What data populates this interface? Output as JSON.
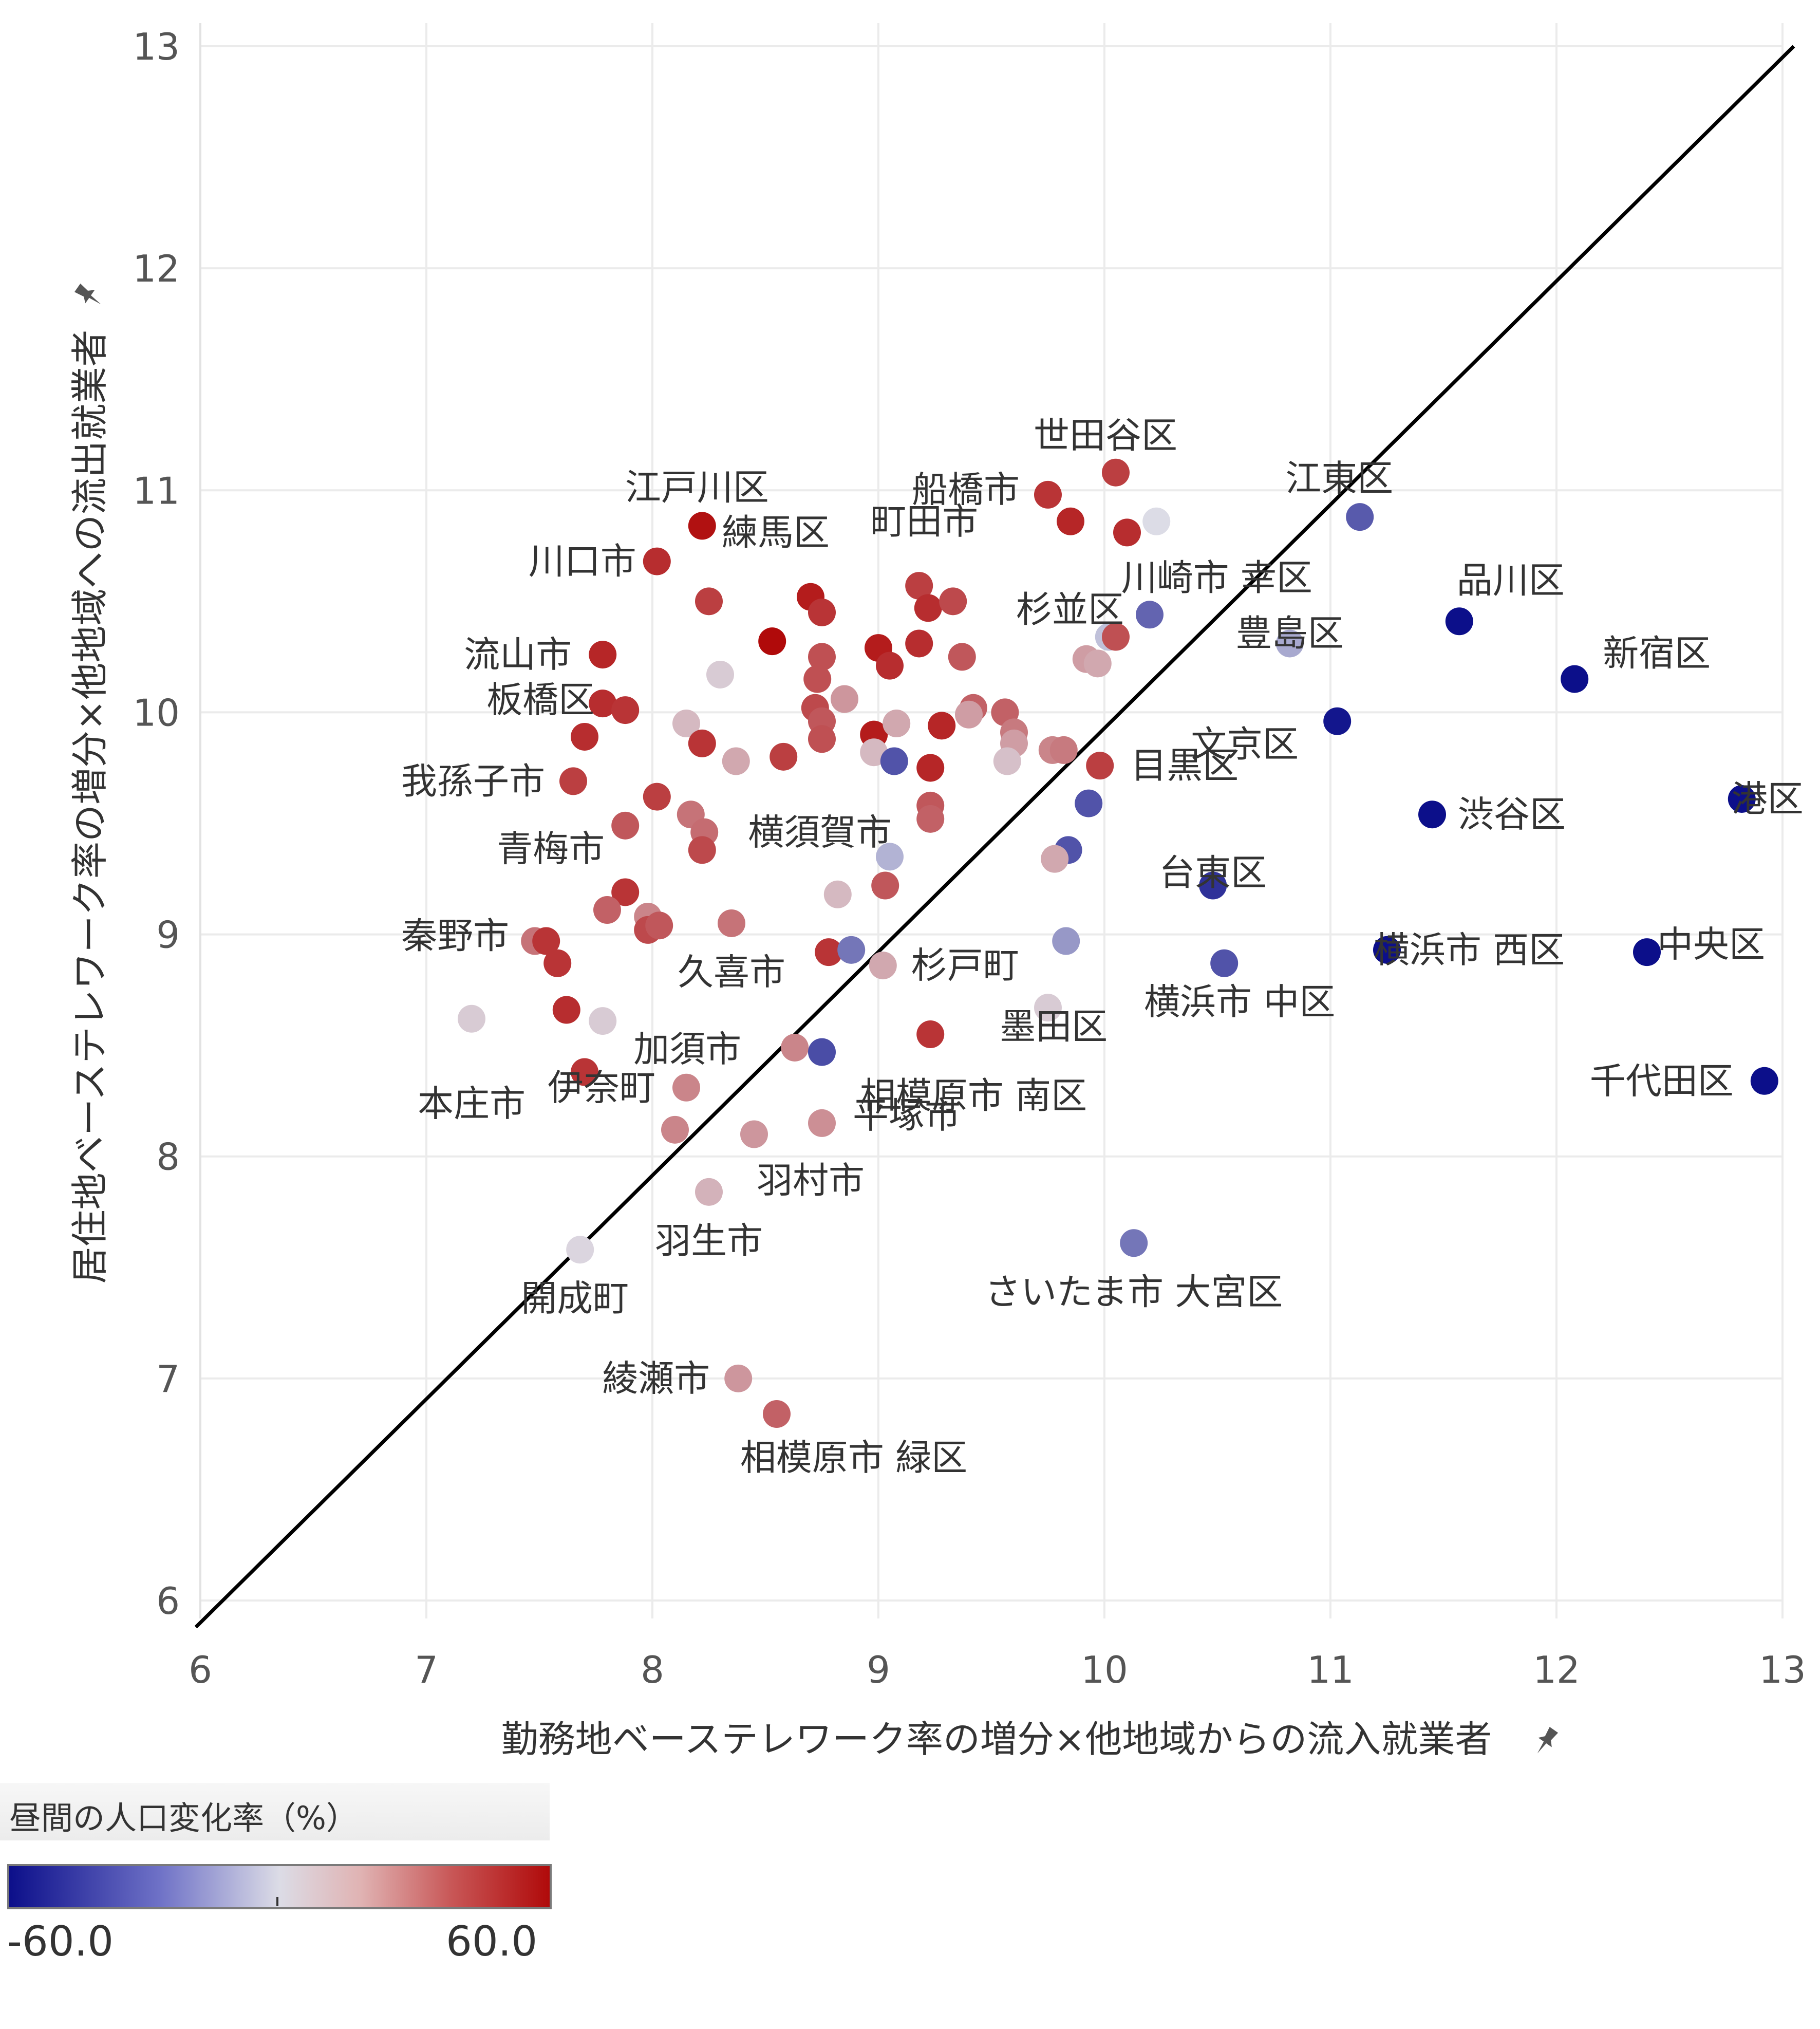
{
  "chart_data": {
    "type": "scatter",
    "title": "",
    "xlabel": "勤務地ベーステレワーク率の増分×他地域からの流入就業者",
    "ylabel": "居住地ベーステレワーク率の増分×他地域への流出就業者",
    "xlim": [
      6,
      13
    ],
    "ylim": [
      6,
      13
    ],
    "xticks": [
      "6",
      "7",
      "8",
      "9",
      "10",
      "11",
      "12",
      "13"
    ],
    "yticks": [
      "6",
      "7",
      "8",
      "9",
      "10",
      "11",
      "12",
      "13"
    ],
    "reference_line": "y = x",
    "color_legend": {
      "title": "昼間の人口変化率（%）",
      "min_label": "-60.0",
      "max_label": "60.0",
      "min": -60,
      "max": 60,
      "low_color": "#0c0f8a",
      "mid_color": "#dcdce6",
      "high_color": "#b00a0a"
    },
    "points": [
      {
        "x": 10.05,
        "y": 11.08,
        "c": 45,
        "label": "世田谷区"
      },
      {
        "x": 11.13,
        "y": 10.88,
        "c": -38,
        "label": "江東区"
      },
      {
        "x": 9.75,
        "y": 10.98,
        "c": 48,
        "label": "船橋市"
      },
      {
        "x": 9.85,
        "y": 10.86,
        "c": 52,
        "label": ""
      },
      {
        "x": 10.1,
        "y": 10.81,
        "c": 50,
        "label": ""
      },
      {
        "x": 10.23,
        "y": 10.86,
        "c": 0,
        "label": ""
      },
      {
        "x": 8.22,
        "y": 10.84,
        "c": 58,
        "label": "江戸川区"
      },
      {
        "x": 8.02,
        "y": 10.68,
        "c": 50,
        "label": "川口市"
      },
      {
        "x": 9.18,
        "y": 10.57,
        "c": 45,
        "label": "町田市"
      },
      {
        "x": 8.7,
        "y": 10.52,
        "c": 55,
        "label": "練馬区"
      },
      {
        "x": 8.75,
        "y": 10.45,
        "c": 48,
        "label": ""
      },
      {
        "x": 9.22,
        "y": 10.47,
        "c": 50,
        "label": ""
      },
      {
        "x": 9.33,
        "y": 10.5,
        "c": 42,
        "label": ""
      },
      {
        "x": 8.25,
        "y": 10.5,
        "c": 45,
        "label": ""
      },
      {
        "x": 10.2,
        "y": 10.44,
        "c": -35,
        "label": "杉並区"
      },
      {
        "x": 10.02,
        "y": 10.34,
        "c": -8,
        "label": "川崎市 幸区"
      },
      {
        "x": 10.05,
        "y": 10.34,
        "c": 40,
        "label": ""
      },
      {
        "x": 11.57,
        "y": 10.41,
        "c": -62,
        "label": "品川区"
      },
      {
        "x": 10.82,
        "y": 10.31,
        "c": -15,
        "label": "豊島区"
      },
      {
        "x": 8.53,
        "y": 10.32,
        "c": 62,
        "label": ""
      },
      {
        "x": 9.0,
        "y": 10.29,
        "c": 55,
        "label": ""
      },
      {
        "x": 9.18,
        "y": 10.31,
        "c": 50,
        "label": ""
      },
      {
        "x": 9.05,
        "y": 10.21,
        "c": 50,
        "label": ""
      },
      {
        "x": 7.78,
        "y": 10.26,
        "c": 52,
        "label": "流山市"
      },
      {
        "x": 8.75,
        "y": 10.25,
        "c": 40,
        "label": ""
      },
      {
        "x": 9.37,
        "y": 10.25,
        "c": 38,
        "label": ""
      },
      {
        "x": 8.3,
        "y": 10.17,
        "c": 5,
        "label": ""
      },
      {
        "x": 8.73,
        "y": 10.15,
        "c": 40,
        "label": ""
      },
      {
        "x": 9.92,
        "y": 10.24,
        "c": 18,
        "label": ""
      },
      {
        "x": 9.97,
        "y": 10.22,
        "c": 15,
        "label": ""
      },
      {
        "x": 12.08,
        "y": 10.15,
        "c": -65,
        "label": "新宿区"
      },
      {
        "x": 7.78,
        "y": 10.04,
        "c": 50,
        "label": ""
      },
      {
        "x": 7.88,
        "y": 10.01,
        "c": 48,
        "label": "板橋区"
      },
      {
        "x": 7.7,
        "y": 9.89,
        "c": 50,
        "label": ""
      },
      {
        "x": 8.72,
        "y": 10.02,
        "c": 42,
        "label": ""
      },
      {
        "x": 8.85,
        "y": 10.06,
        "c": 20,
        "label": ""
      },
      {
        "x": 8.15,
        "y": 9.95,
        "c": 10,
        "label": ""
      },
      {
        "x": 8.75,
        "y": 9.96,
        "c": 38,
        "label": ""
      },
      {
        "x": 8.75,
        "y": 9.88,
        "c": 40,
        "label": ""
      },
      {
        "x": 8.98,
        "y": 9.9,
        "c": 55,
        "label": ""
      },
      {
        "x": 9.08,
        "y": 9.95,
        "c": 15,
        "label": ""
      },
      {
        "x": 9.28,
        "y": 9.94,
        "c": 52,
        "label": ""
      },
      {
        "x": 9.42,
        "y": 10.02,
        "c": 35,
        "label": ""
      },
      {
        "x": 9.4,
        "y": 9.99,
        "c": 18,
        "label": ""
      },
      {
        "x": 9.56,
        "y": 10.0,
        "c": 35,
        "label": ""
      },
      {
        "x": 9.6,
        "y": 9.91,
        "c": 28,
        "label": ""
      },
      {
        "x": 9.6,
        "y": 9.86,
        "c": 18,
        "label": ""
      },
      {
        "x": 8.22,
        "y": 9.86,
        "c": 48,
        "label": ""
      },
      {
        "x": 8.98,
        "y": 9.82,
        "c": 10,
        "label": ""
      },
      {
        "x": 8.58,
        "y": 9.8,
        "c": 45,
        "label": ""
      },
      {
        "x": 8.37,
        "y": 9.78,
        "c": 15,
        "label": ""
      },
      {
        "x": 9.77,
        "y": 9.83,
        "c": 25,
        "label": ""
      },
      {
        "x": 9.82,
        "y": 9.83,
        "c": 28,
        "label": ""
      },
      {
        "x": 9.57,
        "y": 9.78,
        "c": 8,
        "label": ""
      },
      {
        "x": 9.07,
        "y": 9.78,
        "c": -40,
        "label": ""
      },
      {
        "x": 9.23,
        "y": 9.75,
        "c": 52,
        "label": ""
      },
      {
        "x": 9.98,
        "y": 9.76,
        "c": 45,
        "label": "目黒区"
      },
      {
        "x": 11.03,
        "y": 9.96,
        "c": -58,
        "label": "文京区"
      },
      {
        "x": 7.65,
        "y": 9.69,
        "c": 45,
        "label": "我孫子市"
      },
      {
        "x": 8.02,
        "y": 9.62,
        "c": 45,
        "label": ""
      },
      {
        "x": 8.17,
        "y": 9.54,
        "c": 30,
        "label": ""
      },
      {
        "x": 8.23,
        "y": 9.46,
        "c": 32,
        "label": "横須賀市"
      },
      {
        "x": 8.22,
        "y": 9.38,
        "c": 42,
        "label": ""
      },
      {
        "x": 9.23,
        "y": 9.58,
        "c": 38,
        "label": ""
      },
      {
        "x": 9.23,
        "y": 9.52,
        "c": 35,
        "label": ""
      },
      {
        "x": 7.88,
        "y": 9.49,
        "c": 38,
        "label": "青梅市"
      },
      {
        "x": 9.05,
        "y": 9.35,
        "c": -12,
        "label": ""
      },
      {
        "x": 9.93,
        "y": 9.59,
        "c": -40,
        "label": ""
      },
      {
        "x": 9.84,
        "y": 9.38,
        "c": -40,
        "label": ""
      },
      {
        "x": 9.78,
        "y": 9.34,
        "c": 15,
        "label": ""
      },
      {
        "x": 12.82,
        "y": 9.61,
        "c": -68,
        "label": "港区"
      },
      {
        "x": 11.45,
        "y": 9.54,
        "c": -62,
        "label": "渋谷区"
      },
      {
        "x": 10.48,
        "y": 9.22,
        "c": -50,
        "label": "台東区"
      },
      {
        "x": 7.88,
        "y": 9.19,
        "c": 48,
        "label": ""
      },
      {
        "x": 7.8,
        "y": 9.11,
        "c": 35,
        "label": ""
      },
      {
        "x": 8.82,
        "y": 9.18,
        "c": 10,
        "label": ""
      },
      {
        "x": 9.03,
        "y": 9.22,
        "c": 38,
        "label": ""
      },
      {
        "x": 7.98,
        "y": 9.08,
        "c": 25,
        "label": ""
      },
      {
        "x": 7.98,
        "y": 9.02,
        "c": 42,
        "label": ""
      },
      {
        "x": 8.03,
        "y": 9.04,
        "c": 38,
        "label": ""
      },
      {
        "x": 8.35,
        "y": 9.05,
        "c": 30,
        "label": "久喜市"
      },
      {
        "x": 7.48,
        "y": 8.97,
        "c": 30,
        "label": "秦野市"
      },
      {
        "x": 7.53,
        "y": 8.97,
        "c": 48,
        "label": ""
      },
      {
        "x": 7.58,
        "y": 8.87,
        "c": 48,
        "label": ""
      },
      {
        "x": 8.78,
        "y": 8.92,
        "c": 48,
        "label": ""
      },
      {
        "x": 8.88,
        "y": 8.93,
        "c": -30,
        "label": ""
      },
      {
        "x": 9.02,
        "y": 8.86,
        "c": 15,
        "label": "杉戸町"
      },
      {
        "x": 9.83,
        "y": 8.97,
        "c": -20,
        "label": ""
      },
      {
        "x": 10.53,
        "y": 8.87,
        "c": -40,
        "label": "横浜市 中区"
      },
      {
        "x": 11.25,
        "y": 8.93,
        "c": -62,
        "label": "横浜市 西区"
      },
      {
        "x": 12.4,
        "y": 8.92,
        "c": -68,
        "label": "中央区"
      },
      {
        "x": 7.62,
        "y": 8.66,
        "c": 50,
        "label": ""
      },
      {
        "x": 7.78,
        "y": 8.61,
        "c": 5,
        "label": "加須市"
      },
      {
        "x": 7.2,
        "y": 8.62,
        "c": 5,
        "label": "本庄市"
      },
      {
        "x": 9.75,
        "y": 8.67,
        "c": 5,
        "label": ""
      },
      {
        "x": 9.23,
        "y": 8.55,
        "c": 48,
        "label": "墨田区"
      },
      {
        "x": 8.63,
        "y": 8.49,
        "c": 25,
        "label": ""
      },
      {
        "x": 8.75,
        "y": 8.47,
        "c": -42,
        "label": "相模原市 南区"
      },
      {
        "x": 7.7,
        "y": 8.38,
        "c": 48,
        "label": ""
      },
      {
        "x": 8.15,
        "y": 8.31,
        "c": 25,
        "label": "伊奈町"
      },
      {
        "x": 8.75,
        "y": 8.15,
        "c": 22,
        "label": "平塚市"
      },
      {
        "x": 8.1,
        "y": 8.12,
        "c": 25,
        "label": ""
      },
      {
        "x": 8.45,
        "y": 8.1,
        "c": 20,
        "label": "羽村市"
      },
      {
        "x": 12.92,
        "y": 8.34,
        "c": -68,
        "label": "千代田区"
      },
      {
        "x": 8.25,
        "y": 7.84,
        "c": 12,
        "label": "羽生市"
      },
      {
        "x": 7.68,
        "y": 7.58,
        "c": 2,
        "label": "開成町"
      },
      {
        "x": 10.13,
        "y": 7.61,
        "c": -30,
        "label": "さいたま市 大宮区"
      },
      {
        "x": 8.38,
        "y": 7.0,
        "c": 20,
        "label": "綾瀬市"
      },
      {
        "x": 8.55,
        "y": 6.84,
        "c": 35,
        "label": "相模原市 緑区"
      }
    ]
  },
  "legend": {
    "title": "昼間の人口変化率（%）",
    "min_label": "-60.0",
    "max_label": "60.0"
  },
  "icons": [
    "pin-icon"
  ]
}
